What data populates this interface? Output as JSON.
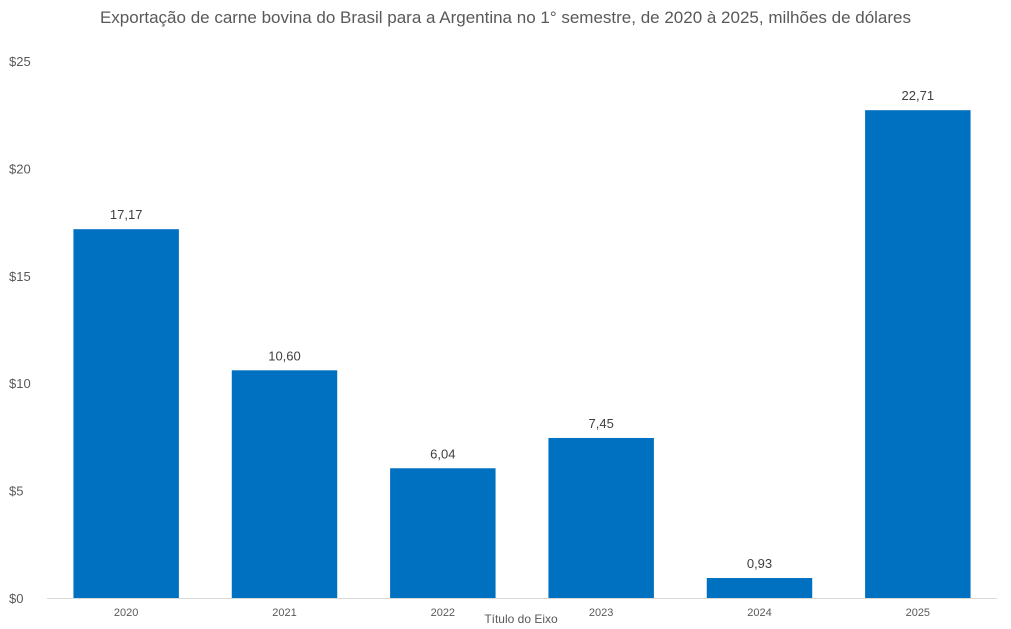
{
  "chart_data": {
    "type": "bar",
    "title": "Exportação de carne bovina do Brasil para a Argentina no 1° semestre, de 2020 à 2025, milhões de dólares",
    "xlabel": "Título do Eixo",
    "ylabel": "",
    "categories": [
      "2020",
      "2021",
      "2022",
      "2023",
      "2024",
      "2025"
    ],
    "values": [
      17.17,
      10.6,
      6.04,
      7.45,
      0.93,
      22.71
    ],
    "data_labels": [
      "17,17",
      "10,60",
      "6,04",
      "7,45",
      "0,93",
      "22,71"
    ],
    "yticks": [
      0,
      5,
      10,
      15,
      20,
      25
    ],
    "ytick_labels": [
      "$0",
      "$5",
      "$10",
      "$15",
      "$20",
      "$25"
    ],
    "ylim": [
      0,
      25
    ],
    "grid": false,
    "legend": "none",
    "bar_color": "#0070C0"
  }
}
